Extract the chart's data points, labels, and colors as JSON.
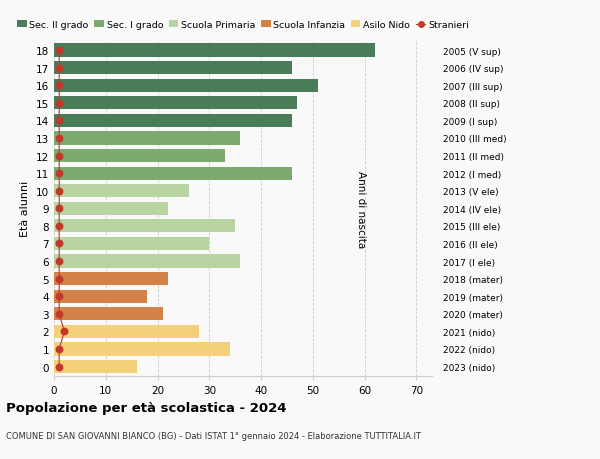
{
  "ages": [
    18,
    17,
    16,
    15,
    14,
    13,
    12,
    11,
    10,
    9,
    8,
    7,
    6,
    5,
    4,
    3,
    2,
    1,
    0
  ],
  "years": [
    "2005 (V sup)",
    "2006 (IV sup)",
    "2007 (III sup)",
    "2008 (II sup)",
    "2009 (I sup)",
    "2010 (III med)",
    "2011 (II med)",
    "2012 (I med)",
    "2013 (V ele)",
    "2014 (IV ele)",
    "2015 (III ele)",
    "2016 (II ele)",
    "2017 (I ele)",
    "2018 (mater)",
    "2019 (mater)",
    "2020 (mater)",
    "2021 (nido)",
    "2022 (nido)",
    "2023 (nido)"
  ],
  "values": [
    62,
    46,
    51,
    47,
    46,
    36,
    33,
    46,
    26,
    22,
    35,
    30,
    36,
    22,
    18,
    21,
    28,
    34,
    16
  ],
  "stranieri": [
    1,
    1,
    1,
    1,
    1,
    1,
    1,
    1,
    1,
    1,
    1,
    1,
    1,
    1,
    1,
    1,
    2,
    1,
    1
  ],
  "colors": {
    "sec2": "#4a7c59",
    "sec1": "#7daa6e",
    "primaria": "#b8d4a0",
    "infanzia": "#d4824a",
    "nido": "#f5d07a",
    "stranieri": "#c0392b"
  },
  "category_colors": [
    "sec2",
    "sec2",
    "sec2",
    "sec2",
    "sec2",
    "sec1",
    "sec1",
    "sec1",
    "primaria",
    "primaria",
    "primaria",
    "primaria",
    "primaria",
    "infanzia",
    "infanzia",
    "infanzia",
    "nido",
    "nido",
    "nido"
  ],
  "title": "Popolazione per età scolastica - 2024",
  "subtitle": "COMUNE DI SAN GIOVANNI BIANCO (BG) - Dati ISTAT 1° gennaio 2024 - Elaborazione TUTTITALIA.IT",
  "ylabel": "Età alunni",
  "right_label": "Anni di nascita",
  "xlabel_ticks": [
    0,
    10,
    20,
    30,
    40,
    50,
    60,
    70
  ],
  "xlim": [
    0,
    73
  ],
  "legend_labels": [
    "Sec. II grado",
    "Sec. I grado",
    "Scuola Primaria",
    "Scuola Infanzia",
    "Asilo Nido",
    "Stranieri"
  ],
  "legend_colors": [
    "#4a7c59",
    "#7daa6e",
    "#b8d4a0",
    "#d4824a",
    "#f5d07a",
    "#c0392b"
  ],
  "bar_height": 0.75,
  "background_color": "#f9f9f9",
  "grid_color": "#cccccc"
}
